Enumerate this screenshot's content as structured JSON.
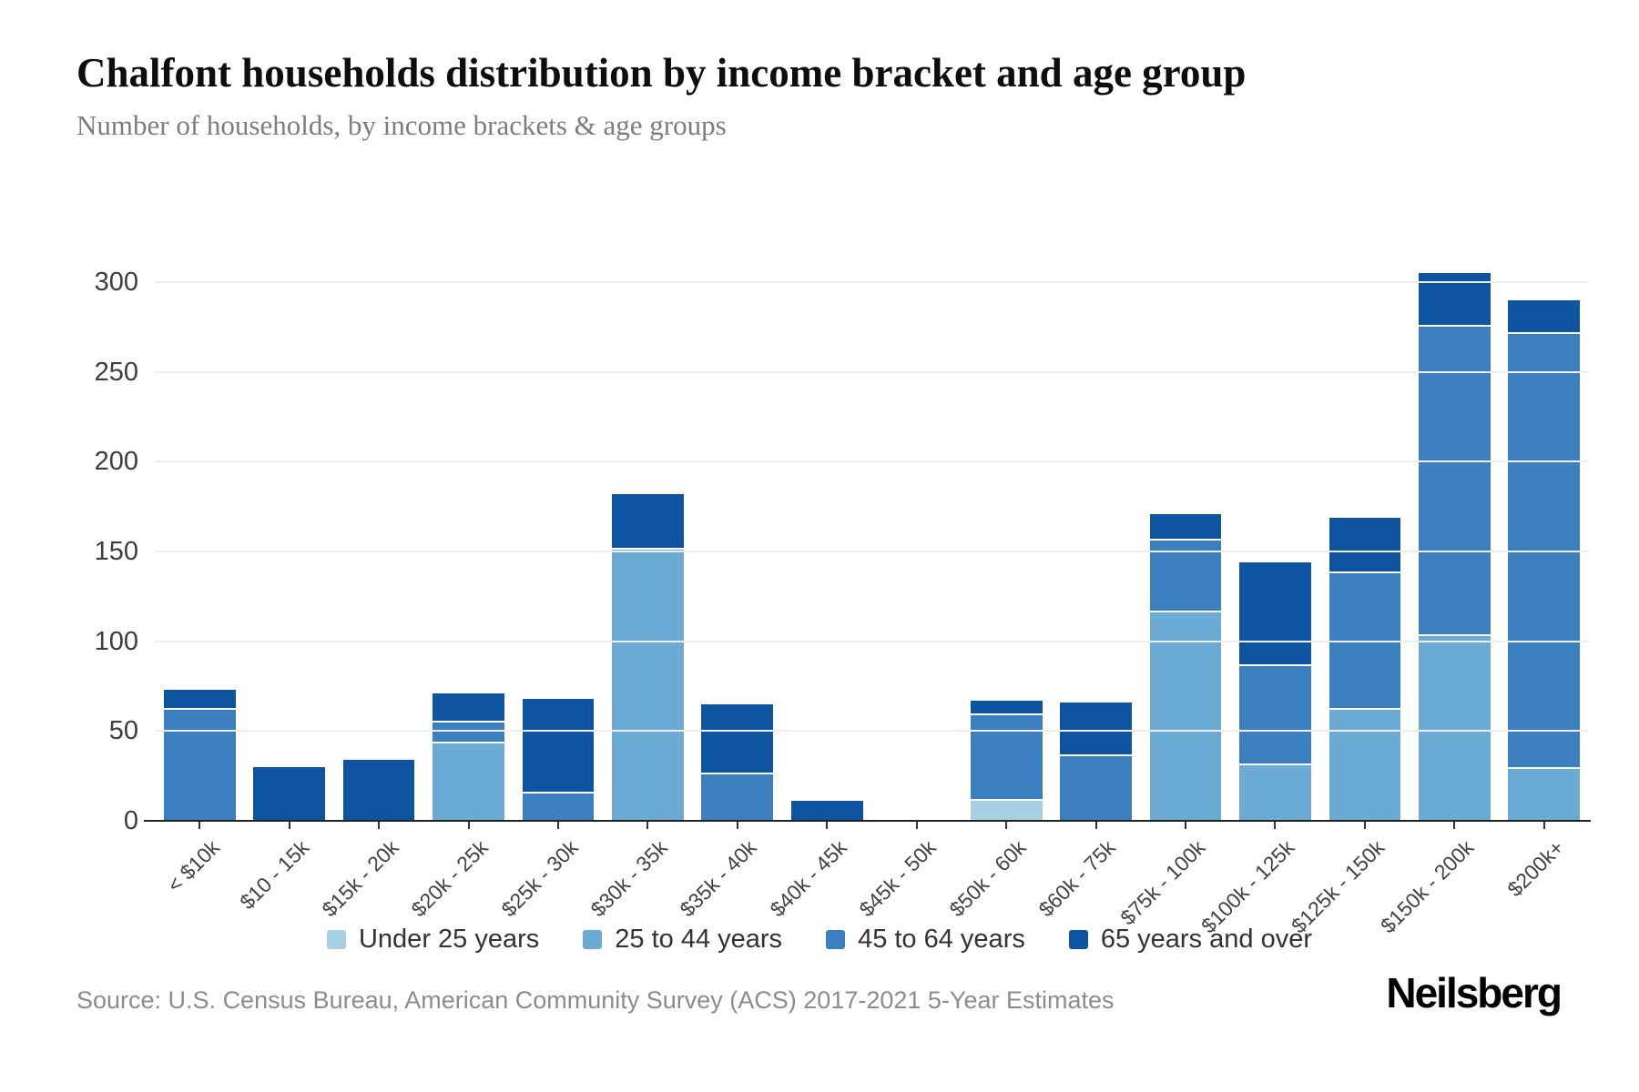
{
  "title": "Chalfont households distribution by income bracket and age group",
  "subtitle": "Number of households, by income brackets & age groups",
  "source": "Source: U.S. Census Bureau, American Community Survey (ACS) 2017-2021 5-Year Estimates",
  "brand": "Neilsberg",
  "colors": {
    "background": "#ffffff",
    "gridline": "#eeeeee",
    "axis_line": "#222222",
    "title_text": "#0d0d0d",
    "subtitle_text": "#7d7d7d",
    "tick_text": "#424242",
    "legend_text": "#333333",
    "source_text": "#8c8c8c",
    "under_25": "#a9cfe5",
    "age_25_44": "#6aaad4",
    "age_45_64": "#3b7fbe",
    "age_65_over": "#0f54a1"
  },
  "chart_data": {
    "type": "bar",
    "stacked": true,
    "title": "Chalfont households distribution by income bracket and age group",
    "subtitle": "Number of households, by income brackets & age groups",
    "xlabel": "",
    "ylabel": "",
    "ylim": [
      0,
      300
    ],
    "yticks": [
      0,
      50,
      100,
      150,
      200,
      250,
      300
    ],
    "grid": true,
    "legend_position": "bottom",
    "categories": [
      "< $10k",
      "$10 - 15k",
      "$15k - 20k",
      "$20k - 25k",
      "$25k - 30k",
      "$30k - 35k",
      "$35k - 40k",
      "$40k - 45k",
      "$45k - 50k",
      "$50k - 60k",
      "$60k - 75k",
      "$75k - 100k",
      "$100k - 125k",
      "$125k - 150k",
      "$150k - 200k",
      "$200k+"
    ],
    "series": [
      {
        "name": "Under 25 years",
        "color": "#a9cfe5",
        "values": [
          0,
          0,
          0,
          0,
          0,
          0,
          0,
          0,
          0,
          12,
          0,
          0,
          0,
          0,
          0,
          0
        ]
      },
      {
        "name": "25 to 44 years",
        "color": "#6aaad4",
        "values": [
          0,
          0,
          0,
          44,
          0,
          152,
          0,
          0,
          0,
          0,
          0,
          117,
          32,
          63,
          104,
          30
        ]
      },
      {
        "name": "45 to 64 years",
        "color": "#3b7fbe",
        "values": [
          63,
          0,
          0,
          12,
          16,
          0,
          27,
          0,
          0,
          48,
          37,
          40,
          55,
          76,
          172,
          242
        ]
      },
      {
        "name": "65 years and over",
        "color": "#0f54a1",
        "values": [
          10,
          30,
          34,
          15,
          52,
          30,
          38,
          11,
          0,
          7,
          29,
          14,
          57,
          30,
          29,
          18
        ]
      }
    ],
    "totals": [
      73,
      30,
      34,
      71,
      68,
      182,
      65,
      11,
      0,
      67,
      66,
      171,
      144,
      169,
      305,
      290
    ]
  }
}
